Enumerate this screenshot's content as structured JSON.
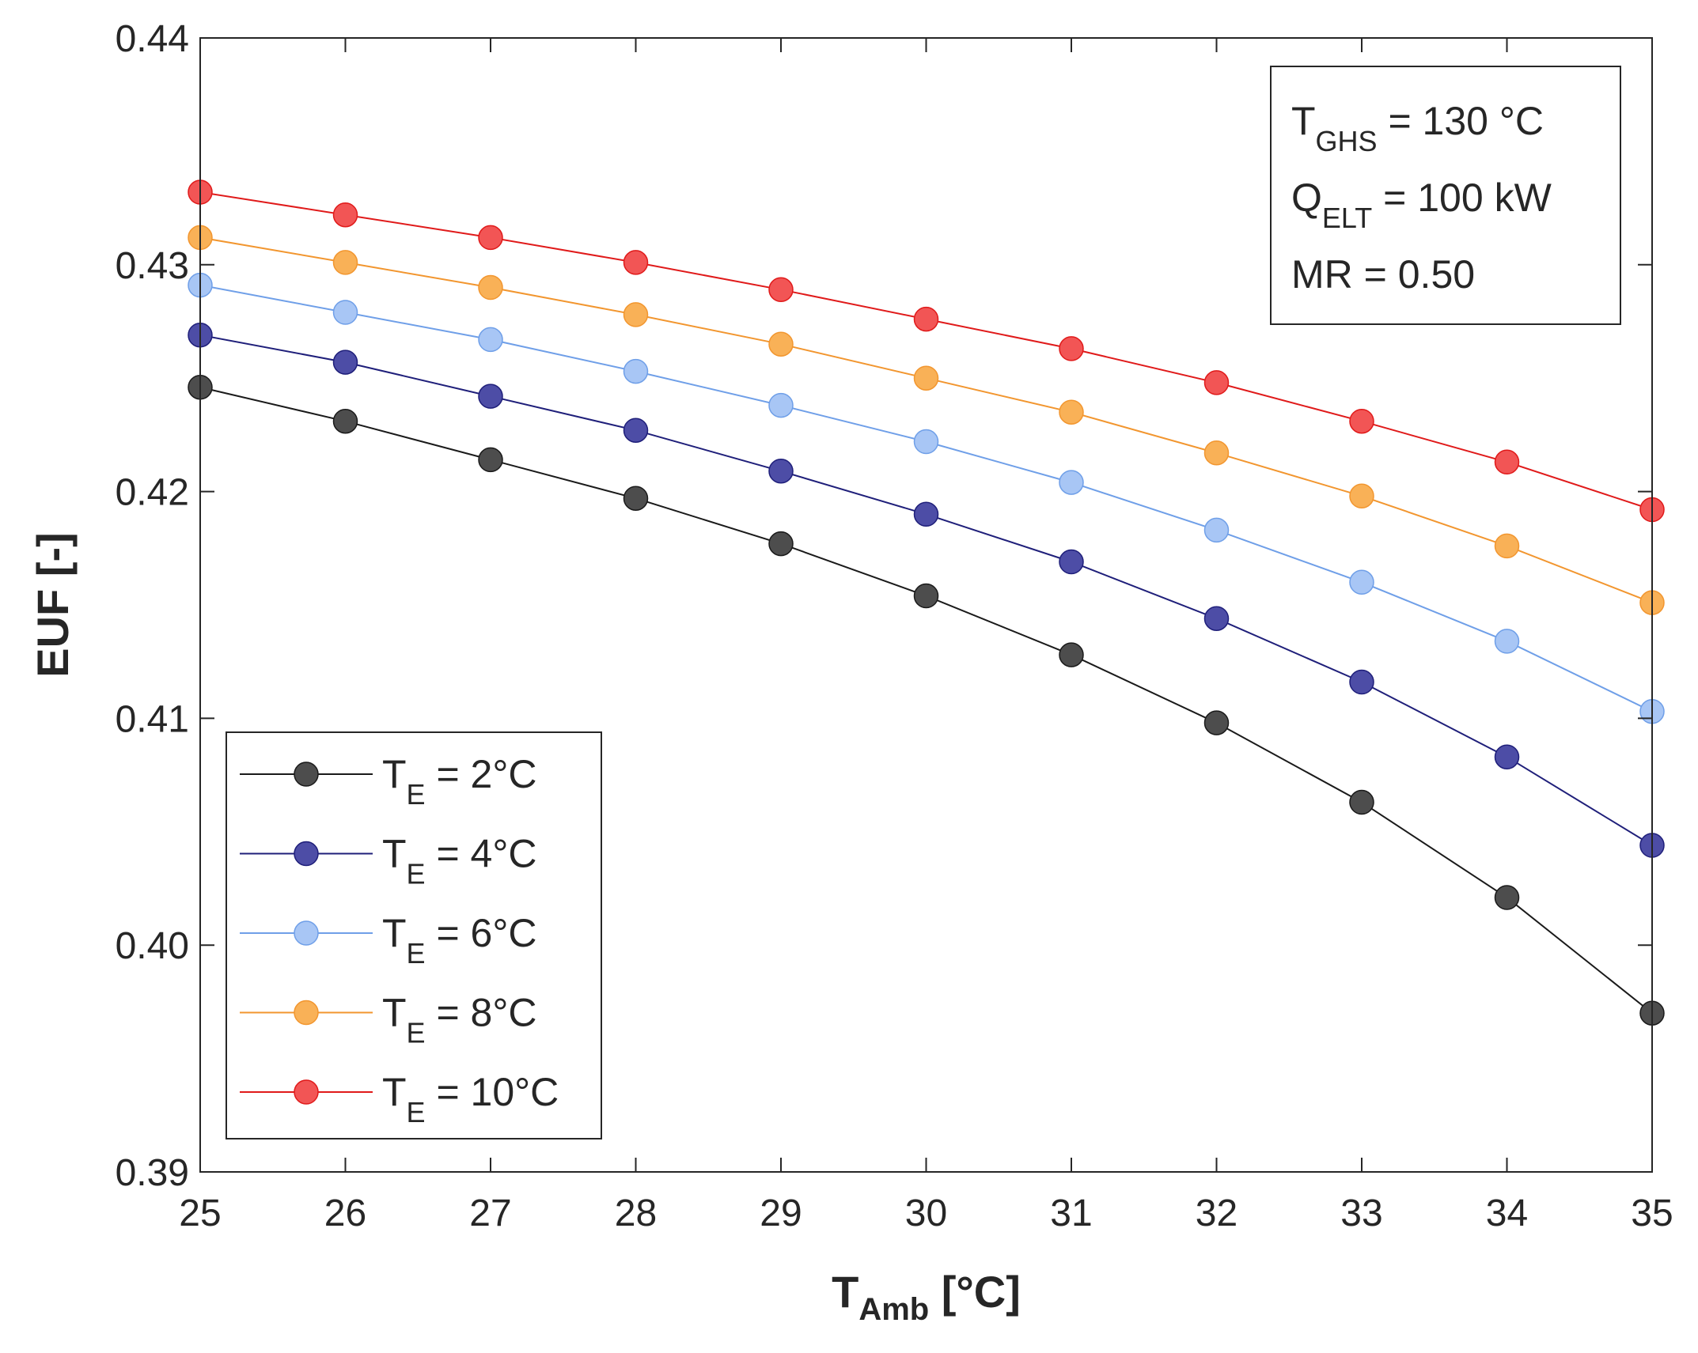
{
  "chart_data": {
    "type": "line",
    "title": "",
    "xlabel": {
      "main": "T",
      "sub": "Amb",
      "unit": " [°C]"
    },
    "ylabel": "EUF [-]",
    "xlim": [
      25,
      35
    ],
    "ylim": [
      0.39,
      0.44
    ],
    "x": [
      25,
      26,
      27,
      28,
      29,
      30,
      31,
      32,
      33,
      34,
      35
    ],
    "xticks": [
      "25",
      "26",
      "27",
      "28",
      "29",
      "30",
      "31",
      "32",
      "33",
      "34",
      "35"
    ],
    "yticks": [
      {
        "value": 0.39,
        "label": "0.39"
      },
      {
        "value": 0.4,
        "label": "0.40"
      },
      {
        "value": 0.41,
        "label": "0.41"
      },
      {
        "value": 0.42,
        "label": "0.42"
      },
      {
        "value": 0.43,
        "label": "0.43"
      },
      {
        "value": 0.44,
        "label": "0.44"
      }
    ],
    "grid": false,
    "legend_position": "bottom-left",
    "series": [
      {
        "name": "T_E = 2°C",
        "label_main": "T",
        "label_sub": "E",
        "label_rest": " = 2°C",
        "line_color": "#1a1a1a",
        "marker_color": "#4d4d4d",
        "values": [
          0.4246,
          0.4231,
          0.4214,
          0.4197,
          0.4177,
          0.4154,
          0.4128,
          0.4098,
          0.4063,
          0.4021,
          0.397
        ]
      },
      {
        "name": "T_E = 4°C",
        "label_main": "T",
        "label_sub": "E",
        "label_rest": " = 4°C",
        "line_color": "#1f1f7a",
        "marker_color": "#4d4da6",
        "values": [
          0.4269,
          0.4257,
          0.4242,
          0.4227,
          0.4209,
          0.419,
          0.4169,
          0.4144,
          0.4116,
          0.4083,
          0.4044
        ]
      },
      {
        "name": "T_E = 6°C",
        "label_main": "T",
        "label_sub": "E",
        "label_rest": " = 6°C",
        "line_color": "#6f9fe8",
        "marker_color": "#a8c6f5",
        "values": [
          0.4291,
          0.4279,
          0.4267,
          0.4253,
          0.4238,
          0.4222,
          0.4204,
          0.4183,
          0.416,
          0.4134,
          0.4103
        ]
      },
      {
        "name": "T_E = 8°C",
        "label_main": "T",
        "label_sub": "E",
        "label_rest": " = 8°C",
        "line_color": "#f2962f",
        "marker_color": "#f9b157",
        "values": [
          0.4312,
          0.4301,
          0.429,
          0.4278,
          0.4265,
          0.425,
          0.4235,
          0.4217,
          0.4198,
          0.4176,
          0.4151
        ]
      },
      {
        "name": "T_E = 10°C",
        "label_main": "T",
        "label_sub": "E",
        "label_rest": " = 10°C",
        "line_color": "#e01a1a",
        "marker_color": "#f25555",
        "values": [
          0.4332,
          0.4322,
          0.4312,
          0.4301,
          0.4289,
          0.4276,
          0.4263,
          0.4248,
          0.4231,
          0.4213,
          0.4192
        ]
      }
    ],
    "annotation": {
      "lines": [
        {
          "main": "T",
          "sub": "GHS",
          "rest": " = 130 °C"
        },
        {
          "main": "Q",
          "sub": "ELT",
          "rest": " = 100 kW"
        },
        {
          "main": "MR = 0.50",
          "sub": "",
          "rest": ""
        }
      ],
      "position": "top-right"
    }
  }
}
